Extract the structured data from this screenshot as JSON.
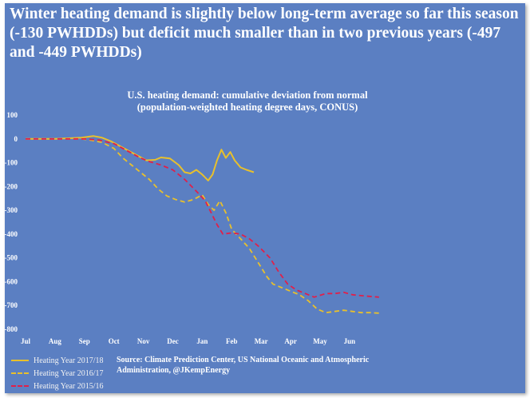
{
  "headline": "Winter heating demand is slightly below long-term average so far this season (-130 PWHDDs) but deficit much smaller than in two previous years (-497 and -449 PWHDDs)",
  "source": "Source: Climate Prediction Center, US National Oceanic and Atmospheric Administration, @JKempEnergy",
  "chart_data": {
    "type": "line",
    "title_lines": [
      "U.S. heating demand: cumulative deviation from normal",
      "(population-weighted heating degree days, CONUS)"
    ],
    "xlabel": "",
    "ylabel": "",
    "categories": [
      "Jul",
      "Aug",
      "Sep",
      "Oct",
      "Nov",
      "Dec",
      "Jan",
      "Feb",
      "Mar",
      "Apr",
      "May",
      "Jun"
    ],
    "ylim": [
      -800,
      100
    ],
    "yticks": [
      100,
      0,
      -100,
      -200,
      -300,
      -400,
      -500,
      -600,
      -700,
      -800
    ],
    "grid": false,
    "legend_position": "bottom-left",
    "series": [
      {
        "name": "Heating Year 2017/18",
        "color": "#e8c02c",
        "dashed": false,
        "points": [
          [
            0,
            0
          ],
          [
            1,
            0
          ],
          [
            1.9,
            5
          ],
          [
            2.3,
            12
          ],
          [
            2.6,
            5
          ],
          [
            2.9,
            -10
          ],
          [
            3.2,
            -30
          ],
          [
            3.5,
            -50
          ],
          [
            3.8,
            -70
          ],
          [
            4.1,
            -90
          ],
          [
            4.4,
            -88
          ],
          [
            4.6,
            -78
          ],
          [
            4.9,
            -82
          ],
          [
            5.2,
            -110
          ],
          [
            5.4,
            -140
          ],
          [
            5.6,
            -145
          ],
          [
            5.8,
            -130
          ],
          [
            6.0,
            -150
          ],
          [
            6.2,
            -175
          ],
          [
            6.35,
            -150
          ],
          [
            6.5,
            -90
          ],
          [
            6.65,
            -45
          ],
          [
            6.8,
            -80
          ],
          [
            6.95,
            -55
          ],
          [
            7.1,
            -90
          ],
          [
            7.3,
            -120
          ],
          [
            7.5,
            -130
          ],
          [
            7.75,
            -140
          ]
        ]
      },
      {
        "name": "Heating Year 2016/17",
        "color": "#e8c02c",
        "dashed": true,
        "points": [
          [
            0,
            0
          ],
          [
            1,
            0
          ],
          [
            1.9,
            0
          ],
          [
            2.2,
            -5
          ],
          [
            2.6,
            -15
          ],
          [
            3.0,
            -40
          ],
          [
            3.3,
            -80
          ],
          [
            3.6,
            -110
          ],
          [
            3.9,
            -140
          ],
          [
            4.2,
            -170
          ],
          [
            4.5,
            -210
          ],
          [
            4.8,
            -240
          ],
          [
            5.1,
            -255
          ],
          [
            5.4,
            -265
          ],
          [
            5.7,
            -255
          ],
          [
            6.0,
            -235
          ],
          [
            6.2,
            -275
          ],
          [
            6.4,
            -300
          ],
          [
            6.6,
            -260
          ],
          [
            6.8,
            -310
          ],
          [
            7.0,
            -380
          ],
          [
            7.3,
            -420
          ],
          [
            7.6,
            -460
          ],
          [
            7.9,
            -520
          ],
          [
            8.2,
            -580
          ],
          [
            8.4,
            -610
          ],
          [
            8.7,
            -625
          ],
          [
            9.0,
            -640
          ],
          [
            9.3,
            -655
          ],
          [
            9.6,
            -680
          ],
          [
            9.9,
            -715
          ],
          [
            10.2,
            -730
          ],
          [
            10.5,
            -725
          ],
          [
            10.8,
            -720
          ],
          [
            11.1,
            -725
          ],
          [
            11.4,
            -730
          ],
          [
            11.7,
            -730
          ],
          [
            12.0,
            -732
          ]
        ]
      },
      {
        "name": "Heating Year 2015/16",
        "color": "#e0204a",
        "dashed": true,
        "points": [
          [
            0,
            0
          ],
          [
            1,
            0
          ],
          [
            2,
            0
          ],
          [
            2.5,
            -5
          ],
          [
            3.0,
            -20
          ],
          [
            3.3,
            -40
          ],
          [
            3.6,
            -60
          ],
          [
            3.9,
            -80
          ],
          [
            4.2,
            -95
          ],
          [
            4.6,
            -110
          ],
          [
            5.0,
            -130
          ],
          [
            5.4,
            -170
          ],
          [
            5.8,
            -220
          ],
          [
            6.1,
            -260
          ],
          [
            6.3,
            -310
          ],
          [
            6.5,
            -360
          ],
          [
            6.7,
            -400
          ],
          [
            7.0,
            -395
          ],
          [
            7.3,
            -400
          ],
          [
            7.6,
            -420
          ],
          [
            7.9,
            -450
          ],
          [
            8.3,
            -500
          ],
          [
            8.6,
            -560
          ],
          [
            8.9,
            -610
          ],
          [
            9.2,
            -635
          ],
          [
            9.5,
            -650
          ],
          [
            9.8,
            -665
          ],
          [
            10.2,
            -650
          ],
          [
            10.5,
            -650
          ],
          [
            10.8,
            -645
          ],
          [
            11.1,
            -655
          ],
          [
            11.5,
            -660
          ],
          [
            12.0,
            -665
          ]
        ]
      }
    ]
  }
}
